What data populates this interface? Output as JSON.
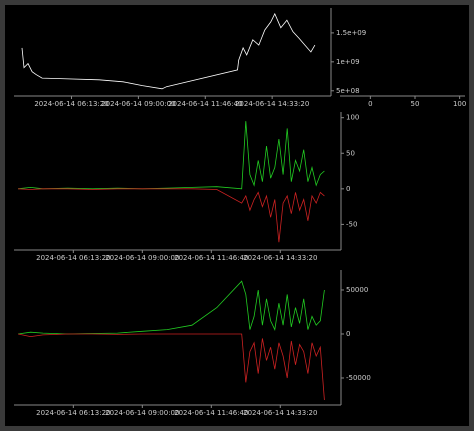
{
  "chart_data": [
    {
      "type": "line",
      "xlim": [
        "2024-06-14 03:50:00",
        "2024-06-14 17:00:00"
      ],
      "xticks": [
        "2024-06-14 06:13:20",
        "2024-06-14 09:00:00",
        "2024-06-14 11:46:40",
        "2024-06-14 14:33:20"
      ],
      "ylim": [
        410000000,
        1930000000
      ],
      "yticks": [
        {
          "value": 1500000000,
          "label": "1.5e+09"
        },
        {
          "value": 1000000000,
          "label": "1e+09"
        },
        {
          "value": 500000000,
          "label": "5e+08"
        }
      ],
      "x": [
        "2024-06-14 04:10:00",
        "2024-06-14 04:15:00",
        "2024-06-14 04:25:00",
        "2024-06-14 04:35:00",
        "2024-06-14 04:45:00",
        "2024-06-14 05:00:00",
        "2024-06-14 05:45:00",
        "2024-06-14 07:22:00",
        "2024-06-14 08:22:00",
        "2024-06-14 09:10:00",
        "2024-06-14 09:59:00",
        "2024-06-14 10:10:00",
        "2024-06-14 13:07:00",
        "2024-06-14 13:10:00",
        "2024-06-14 13:21:00",
        "2024-06-14 13:30:00",
        "2024-06-14 13:45:00",
        "2024-06-14 14:00:00",
        "2024-06-14 14:15:00",
        "2024-06-14 14:30:00",
        "2024-06-14 14:40:00",
        "2024-06-14 14:55:00",
        "2024-06-14 15:10:00",
        "2024-06-14 15:25:00",
        "2024-06-14 15:40:00",
        "2024-06-14 15:55:00",
        "2024-06-14 16:10:00",
        "2024-06-14 16:20:00"
      ],
      "series": [
        {
          "color": "#ffffff",
          "values": [
            1240000000,
            900000000,
            970000000,
            830000000,
            780000000,
            720000000,
            710000000,
            690000000,
            655000000,
            590000000,
            535000000,
            570000000,
            860000000,
            1030000000,
            1240000000,
            1120000000,
            1380000000,
            1290000000,
            1550000000,
            1690000000,
            1830000000,
            1590000000,
            1720000000,
            1520000000,
            1410000000,
            1290000000,
            1170000000,
            1290000000
          ]
        }
      ]
    },
    {
      "type": "line",
      "xlim": [
        "2024-06-14 03:50:00",
        "2024-06-14 17:00:00"
      ],
      "xticks": [
        "2024-06-14 06:13:20",
        "2024-06-14 09:00:00",
        "2024-06-14 11:46:40",
        "2024-06-14 14:33:20"
      ],
      "ylim": [
        -86,
        108
      ],
      "yticks": [
        100,
        50,
        0,
        -50
      ],
      "x": [
        "2024-06-14 04:00:00",
        "2024-06-14 04:30:00",
        "2024-06-14 05:00:00",
        "2024-06-14 06:00:00",
        "2024-06-14 07:00:00",
        "2024-06-14 08:00:00",
        "2024-06-14 09:00:00",
        "2024-06-14 10:00:00",
        "2024-06-14 11:00:00",
        "2024-06-14 12:00:00",
        "2024-06-14 13:00:00",
        "2024-06-14 13:10:00",
        "2024-06-14 13:20:00",
        "2024-06-14 13:30:00",
        "2024-06-14 13:40:00",
        "2024-06-14 13:50:00",
        "2024-06-14 14:00:00",
        "2024-06-14 14:10:00",
        "2024-06-14 14:20:00",
        "2024-06-14 14:30:00",
        "2024-06-14 14:40:00",
        "2024-06-14 14:50:00",
        "2024-06-14 15:00:00",
        "2024-06-14 15:10:00",
        "2024-06-14 15:20:00",
        "2024-06-14 15:30:00",
        "2024-06-14 15:40:00",
        "2024-06-14 15:50:00",
        "2024-06-14 16:00:00",
        "2024-06-14 16:10:00",
        "2024-06-14 16:20:00"
      ],
      "series": [
        {
          "color": "#22cc22",
          "values": [
            0,
            2,
            0,
            1,
            0,
            1,
            0,
            1,
            2,
            3,
            0,
            95,
            20,
            5,
            40,
            10,
            60,
            15,
            30,
            70,
            20,
            85,
            10,
            40,
            25,
            55,
            10,
            30,
            5,
            20,
            25
          ]
        },
        {
          "color": "#cc2222",
          "values": [
            0,
            -1,
            0,
            0,
            -1,
            0,
            0,
            0,
            0,
            -1,
            -20,
            -10,
            -30,
            -15,
            -5,
            -25,
            -10,
            -40,
            -15,
            -75,
            -20,
            -10,
            -35,
            -5,
            -30,
            -15,
            -45,
            -10,
            -20,
            -5,
            -10
          ]
        }
      ]
    },
    {
      "type": "line",
      "xlim": [
        "2024-06-14 03:50:00",
        "2024-06-14 17:00:00"
      ],
      "xticks": [
        "2024-06-14 06:13:20",
        "2024-06-14 09:00:00",
        "2024-06-14 11:46:40",
        "2024-06-14 14:33:20"
      ],
      "ylim": [
        -80700,
        72700
      ],
      "yticks": [
        50000,
        0,
        -50000
      ],
      "x": [
        "2024-06-14 04:00:00",
        "2024-06-14 04:30:00",
        "2024-06-14 05:00:00",
        "2024-06-14 06:00:00",
        "2024-06-14 07:00:00",
        "2024-06-14 08:00:00",
        "2024-06-14 09:00:00",
        "2024-06-14 10:00:00",
        "2024-06-14 11:00:00",
        "2024-06-14 12:00:00",
        "2024-06-14 13:00:00",
        "2024-06-14 13:10:00",
        "2024-06-14 13:20:00",
        "2024-06-14 13:30:00",
        "2024-06-14 13:40:00",
        "2024-06-14 13:50:00",
        "2024-06-14 14:00:00",
        "2024-06-14 14:10:00",
        "2024-06-14 14:20:00",
        "2024-06-14 14:30:00",
        "2024-06-14 14:40:00",
        "2024-06-14 14:50:00",
        "2024-06-14 15:00:00",
        "2024-06-14 15:10:00",
        "2024-06-14 15:20:00",
        "2024-06-14 15:30:00",
        "2024-06-14 15:40:00",
        "2024-06-14 15:50:00",
        "2024-06-14 16:00:00",
        "2024-06-14 16:10:00",
        "2024-06-14 16:20:00"
      ],
      "series": [
        {
          "color": "#22cc22",
          "values": [
            0,
            2000,
            1000,
            0,
            500,
            1000,
            3000,
            5000,
            10000,
            30000,
            60000,
            45000,
            5000,
            20000,
            50000,
            10000,
            40000,
            15000,
            5000,
            35000,
            10000,
            45000,
            8000,
            30000,
            12000,
            40000,
            5000,
            20000,
            10000,
            15000,
            50000
          ]
        },
        {
          "color": "#cc2222",
          "values": [
            0,
            -3000,
            -1000,
            0,
            0,
            -500,
            0,
            0,
            0,
            0,
            0,
            -55000,
            -20000,
            -10000,
            -45000,
            -5000,
            -30000,
            -15000,
            -40000,
            -10000,
            -25000,
            -50000,
            -8000,
            -35000,
            -12000,
            -20000,
            -45000,
            -10000,
            -25000,
            -15000,
            -75000
          ]
        }
      ]
    },
    {
      "type": "bar",
      "xlim": [
        -34,
        106
      ],
      "xticks": [
        0,
        50,
        100
      ]
    }
  ]
}
